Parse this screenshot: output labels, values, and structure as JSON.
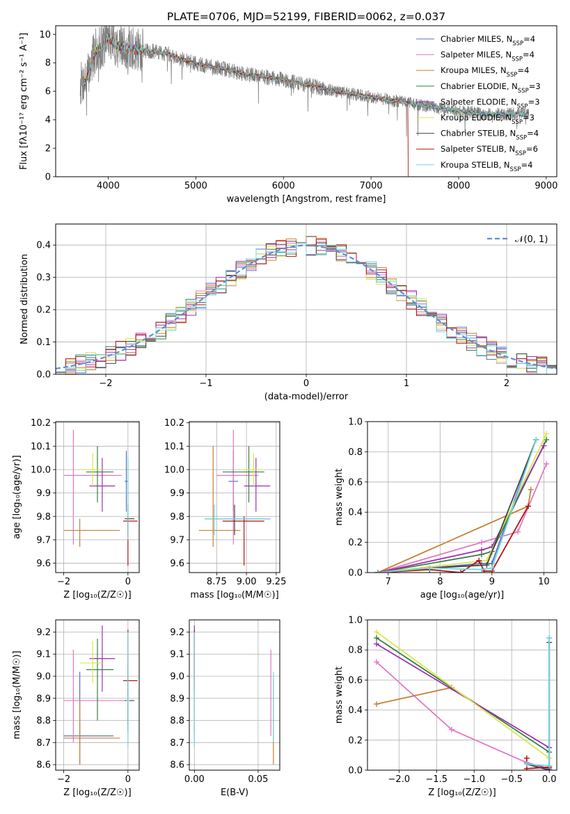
{
  "figure": {
    "title": "PLATE=0706, MJD=52199, FIBERID=0062, z=0.037"
  },
  "colors": {
    "data": "#7f7f7f",
    "models": [
      "#5470c6",
      "#e377c2",
      "#c87f32",
      "#3a7d44",
      "#9b30b0",
      "#d6e84a",
      "#444444",
      "#b01515",
      "#74d5df"
    ],
    "gaussian": "#5b8fd6",
    "grid": "#b0b0b0"
  },
  "chart_data": [
    {
      "id": "spectrum",
      "type": "line",
      "title": "PLATE=0706, MJD=52199, FIBERID=0062, z=0.037",
      "xlabel": "wavelength [Angstrom, rest frame]",
      "ylabel": "Flux [fλ10⁻¹⁷ erg cm⁻² s⁻¹ A⁻¹]",
      "xlim": [
        3400,
        9120
      ],
      "ylim": [
        0,
        10.6
      ],
      "xticks": [
        4000,
        5000,
        6000,
        7000,
        8000,
        9000
      ],
      "yticks": [
        0,
        2,
        4,
        6,
        8,
        10
      ],
      "grid": false,
      "legend_position": "top-right",
      "continuum": {
        "x": [
          3680,
          3750,
          3850,
          3950,
          4000,
          4100,
          4200,
          4300,
          4500,
          4700,
          4900,
          5100,
          5300,
          5500,
          5700,
          6000,
          6300,
          6600,
          6900,
          7200,
          7400
        ],
        "y": [
          6.5,
          6.8,
          8.8,
          9.3,
          9.8,
          9.2,
          9.0,
          8.9,
          8.8,
          8.6,
          8.1,
          7.8,
          7.6,
          7.3,
          7.1,
          6.8,
          6.4,
          6.0,
          5.7,
          5.4,
          5.2
        ]
      },
      "data_tail": {
        "x": [
          7400,
          7700,
          8000,
          8300,
          8600,
          8800
        ],
        "y": [
          5.2,
          4.9,
          4.6,
          4.4,
          4.4,
          4.4
        ]
      },
      "series": [
        {
          "name": "Chabrier MILES",
          "nssp": "4"
        },
        {
          "name": "Salpeter MILES",
          "nssp": "4"
        },
        {
          "name": "Kroupa MILES",
          "nssp": "4"
        },
        {
          "name": "Chabrier ELODIE",
          "nssp": "3"
        },
        {
          "name": "Salpeter ELODIE",
          "nssp": "3"
        },
        {
          "name": "Kroupa ELODIE",
          "nssp": "3"
        },
        {
          "name": "Chabrier STELIB",
          "nssp": "4"
        },
        {
          "name": "Salpeter STELIB",
          "nssp": "6"
        },
        {
          "name": "Kroupa STELIB",
          "nssp": "4"
        }
      ]
    },
    {
      "id": "residuals",
      "type": "histogram",
      "xlabel": "(data-model)/error",
      "ylabel": "Normed distribution",
      "xlim": [
        -2.5,
        2.5
      ],
      "ylim": [
        0,
        0.465
      ],
      "xticks": [
        -2,
        -1,
        0,
        1,
        2
      ],
      "yticks": [
        0.0,
        0.1,
        0.2,
        0.3,
        0.4
      ],
      "grid": true,
      "bin_width": 0.1,
      "gaussian_label": "𝒩(0, 1)",
      "legend_position": "top-right"
    },
    {
      "id": "z-vs-age",
      "type": "errorbar",
      "xlabel": "Z [log₁₀(Z/Z☉)]",
      "ylabel": "age  [log₁₀(age/yr)]",
      "xlim": [
        -2.25,
        0.35
      ],
      "ylim": [
        9.56,
        10.205
      ],
      "xticks": [
        -2,
        0
      ],
      "yticks": [
        9.6,
        9.7,
        9.8,
        9.9,
        10.0,
        10.1,
        10.2
      ],
      "grid": true,
      "points": [
        {
          "series": 0,
          "x": -0.05,
          "y": 9.95,
          "xlo": -0.1,
          "xhi": 0.0,
          "ylo": 9.82,
          "yhi": 10.08
        },
        {
          "series": 1,
          "x": -1.7,
          "y": 9.975,
          "xlo": -2.0,
          "xhi": -0.2,
          "ylo": 9.68,
          "yhi": 10.17
        },
        {
          "series": 2,
          "x": -1.5,
          "y": 9.74,
          "xlo": -2.0,
          "xhi": -0.25,
          "ylo": 9.67,
          "yhi": 9.79
        },
        {
          "series": 3,
          "x": -0.95,
          "y": 9.99,
          "xlo": -1.3,
          "xhi": -0.45,
          "ylo": 9.86,
          "yhi": 10.1
        },
        {
          "series": 4,
          "x": -0.8,
          "y": 9.93,
          "xlo": -1.2,
          "xhi": -0.4,
          "ylo": 9.82,
          "yhi": 10.05
        },
        {
          "series": 5,
          "x": -1.1,
          "y": 10.0,
          "xlo": -1.5,
          "xhi": -0.8,
          "ylo": 9.93,
          "yhi": 10.07
        },
        {
          "series": 6,
          "x": 0.0,
          "y": 9.79,
          "xlo": -0.1,
          "xhi": 0.2,
          "ylo": 9.72,
          "yhi": 9.85
        },
        {
          "series": 7,
          "x": 0.0,
          "y": 9.78,
          "xlo": -0.15,
          "xhi": 0.3,
          "ylo": 9.59,
          "yhi": 9.8
        },
        {
          "series": 8,
          "x": 0.0,
          "y": 9.9,
          "xlo": -0.05,
          "xhi": 0.05,
          "ylo": 9.7,
          "yhi": 10.05
        }
      ]
    },
    {
      "id": "mass-vs-age",
      "type": "errorbar",
      "xlabel": "mass [log₁₀(M/M☉)]",
      "ylabel": "",
      "xlim": [
        8.52,
        9.28
      ],
      "ylim": [
        9.56,
        10.205
      ],
      "xticks": [
        8.75,
        9.0,
        9.25
      ],
      "xticklabels": [
        "8.75",
        "9.00",
        "9.25"
      ],
      "yticks": [
        9.6,
        9.7,
        9.8,
        9.9,
        10.0,
        10.1,
        10.2
      ],
      "grid": true,
      "points": [
        {
          "series": 0,
          "x": 8.89,
          "y": 9.95,
          "xlo": 8.85,
          "xhi": 8.93,
          "ylo": 9.82,
          "yhi": 10.08
        },
        {
          "series": 1,
          "x": 8.89,
          "y": 9.975,
          "xlo": 8.75,
          "xhi": 9.1,
          "ylo": 9.68,
          "yhi": 10.17
        },
        {
          "series": 2,
          "x": 8.72,
          "y": 9.74,
          "xlo": 8.6,
          "xhi": 8.95,
          "ylo": 9.67,
          "yhi": 10.1
        },
        {
          "series": 3,
          "x": 9.02,
          "y": 9.99,
          "xlo": 8.8,
          "xhi": 9.15,
          "ylo": 9.86,
          "yhi": 10.1
        },
        {
          "series": 4,
          "x": 9.08,
          "y": 9.93,
          "xlo": 8.98,
          "xhi": 9.2,
          "ylo": 9.82,
          "yhi": 10.05
        },
        {
          "series": 5,
          "x": 9.06,
          "y": 10.0,
          "xlo": 8.95,
          "xhi": 9.15,
          "ylo": 9.93,
          "yhi": 10.07
        },
        {
          "series": 6,
          "x": 8.9,
          "y": 9.79,
          "xlo": 8.65,
          "xhi": 9.2,
          "ylo": 9.72,
          "yhi": 9.85
        },
        {
          "series": 7,
          "x": 8.98,
          "y": 9.78,
          "xlo": 8.8,
          "xhi": 9.15,
          "ylo": 9.59,
          "yhi": 9.8
        },
        {
          "series": 8,
          "x": 8.73,
          "y": 9.79,
          "xlo": 8.65,
          "xhi": 9.2,
          "ylo": 9.72,
          "yhi": 9.85
        }
      ]
    },
    {
      "id": "age-weights",
      "type": "line",
      "xlabel": "age  [log₁₀(age/yr)]",
      "ylabel": "mass weight",
      "xlim": [
        6.6,
        10.25
      ],
      "ylim": [
        0,
        1.0
      ],
      "xticks": [
        7,
        8,
        9,
        10
      ],
      "yticks": [
        0.0,
        0.2,
        0.4,
        0.6,
        0.8,
        1.0
      ],
      "grid": true,
      "series": [
        {
          "x": [
            6.8,
            8.8,
            9.0,
            9.85
          ],
          "y": [
            0.0,
            0.06,
            0.06,
            0.88
          ]
        },
        {
          "x": [
            6.8,
            8.8,
            9.5,
            10.05
          ],
          "y": [
            0.0,
            0.2,
            0.27,
            0.72
          ]
        },
        {
          "x": [
            6.8,
            9.7,
            9.75
          ],
          "y": [
            0.0,
            0.44,
            0.55
          ]
        },
        {
          "x": [
            6.8,
            8.8,
            9.0,
            10.05
          ],
          "y": [
            0.0,
            0.12,
            0.14,
            0.88
          ]
        },
        {
          "x": [
            6.8,
            8.8,
            9.0,
            10.0
          ],
          "y": [
            0.0,
            0.15,
            0.17,
            0.84
          ]
        },
        {
          "x": [
            6.8,
            8.9,
            10.05
          ],
          "y": [
            0.0,
            0.08,
            0.92
          ]
        },
        {
          "x": [
            6.8,
            7.8,
            8.9,
            9.85
          ],
          "y": [
            0.0,
            0.03,
            0.05,
            0.88
          ]
        },
        {
          "x": [
            6.8,
            7.8,
            8.4,
            8.75,
            8.85,
            9.0,
            9.7
          ],
          "y": [
            0.0,
            0.02,
            0.0,
            0.08,
            0.01,
            0.01,
            0.44
          ]
        },
        {
          "x": [
            6.8,
            7.8,
            8.8,
            9.0,
            9.85
          ],
          "y": [
            0.0,
            0.03,
            0.02,
            0.03,
            0.88
          ]
        }
      ]
    },
    {
      "id": "z-vs-mass",
      "type": "errorbar",
      "xlabel": "Z [log₁₀(Z/Z☉)]",
      "ylabel": "mass [log₁₀(M/M☉)]",
      "xlim": [
        -2.25,
        0.35
      ],
      "ylim": [
        8.575,
        9.255
      ],
      "xticks": [
        -2,
        0
      ],
      "yticks": [
        8.6,
        8.7,
        8.8,
        8.9,
        9.0,
        9.1,
        9.2
      ],
      "grid": true,
      "points": [
        {
          "series": 0,
          "x": -1.5,
          "y": 8.73,
          "xlo": -2.0,
          "xhi": -0.45,
          "ylo": 8.6,
          "yhi": 9.02
        },
        {
          "series": 1,
          "x": -1.7,
          "y": 8.89,
          "xlo": -2.0,
          "xhi": -0.1,
          "ylo": 8.7,
          "yhi": 9.12
        },
        {
          "series": 2,
          "x": -1.5,
          "y": 8.72,
          "xlo": -2.0,
          "xhi": -0.25,
          "ylo": 8.6,
          "yhi": 8.89
        },
        {
          "series": 3,
          "x": -0.95,
          "y": 9.03,
          "xlo": -1.3,
          "xhi": -0.45,
          "ylo": 8.8,
          "yhi": 9.17
        },
        {
          "series": 4,
          "x": -0.8,
          "y": 9.08,
          "xlo": -1.2,
          "xhi": -0.4,
          "ylo": 8.93,
          "yhi": 9.23
        },
        {
          "series": 5,
          "x": -1.1,
          "y": 9.06,
          "xlo": -1.5,
          "xhi": -0.8,
          "ylo": 8.97,
          "yhi": 9.16
        },
        {
          "series": 6,
          "x": 0.0,
          "y": 8.89,
          "xlo": -0.1,
          "xhi": 0.2,
          "ylo": 8.75,
          "yhi": 9.05
        },
        {
          "series": 7,
          "x": 0.0,
          "y": 8.98,
          "xlo": -0.15,
          "xhi": 0.3,
          "ylo": 8.78,
          "yhi": 9.21
        },
        {
          "series": 8,
          "x": 0.0,
          "y": 8.89,
          "xlo": -0.05,
          "xhi": 0.05,
          "ylo": 8.68,
          "yhi": 9.2
        }
      ]
    },
    {
      "id": "ebv-vs-mass",
      "type": "errorbar",
      "xlabel": "E(B-V)",
      "ylabel": "",
      "xlim": [
        -0.004,
        0.067
      ],
      "ylim": [
        8.575,
        9.255
      ],
      "xticks": [
        0.0,
        0.05
      ],
      "xticklabels": [
        "0.00",
        "0.05"
      ],
      "yticks": [
        8.6,
        8.7,
        8.8,
        8.9,
        9.0,
        9.1,
        9.2
      ],
      "grid": true,
      "points": [
        {
          "series": 0,
          "x": 0.0,
          "y": 8.89,
          "ylo": 8.75,
          "yhi": 9.05
        },
        {
          "series": 1,
          "x": 0.0,
          "y": 8.89,
          "ylo": 8.7,
          "yhi": 9.12
        },
        {
          "series": 4,
          "x": 0.0,
          "y": 9.08,
          "ylo": 8.93,
          "yhi": 9.23
        },
        {
          "series": 7,
          "x": 0.0,
          "y": 9.1,
          "ylo": 8.98,
          "yhi": 9.21
        },
        {
          "series": 8,
          "x": 0.0,
          "y": 8.89,
          "ylo": 8.68,
          "yhi": 9.2
        },
        {
          "series": 1,
          "x": 0.06,
          "y": 8.95,
          "ylo": 8.73,
          "yhi": 9.12
        },
        {
          "series": 2,
          "x": 0.062,
          "y": 8.8,
          "ylo": 8.6,
          "yhi": 8.99
        },
        {
          "series": 8,
          "x": 0.062,
          "y": 8.85,
          "ylo": 8.7,
          "yhi": 9.02
        }
      ]
    },
    {
      "id": "z-weights",
      "type": "line",
      "xlabel": "Z [log₁₀(Z/Z☉)]",
      "ylabel": "mass weight",
      "xlim": [
        -2.42,
        0.1
      ],
      "ylim": [
        0,
        1.0
      ],
      "xticks": [
        -2.0,
        -1.5,
        -1.0,
        -0.5,
        0.0
      ],
      "xticklabels": [
        "−2.0",
        "−1.5",
        "−1.0",
        "−0.5",
        "0.0"
      ],
      "yticks": [
        0.0,
        0.2,
        0.4,
        0.6,
        0.8,
        1.0
      ],
      "grid": true,
      "series": [
        {
          "x": [
            -0.3,
            0.0,
            0.0
          ],
          "y": [
            0.05,
            0.01,
            0.88
          ]
        },
        {
          "x": [
            -2.3,
            -1.3,
            -0.3,
            0.0
          ],
          "y": [
            0.72,
            0.27,
            0.05,
            0.0
          ]
        },
        {
          "x": [
            -2.3,
            -1.3
          ],
          "y": [
            0.44,
            0.55
          ]
        },
        {
          "x": [
            -2.3,
            0.0
          ],
          "y": [
            0.88,
            0.12
          ]
        },
        {
          "x": [
            -2.3,
            0.0
          ],
          "y": [
            0.84,
            0.15
          ]
        },
        {
          "x": [
            -2.3,
            0.0
          ],
          "y": [
            0.92,
            0.08
          ]
        },
        {
          "x": [
            -0.3,
            0.0,
            0.0
          ],
          "y": [
            0.04,
            0.0,
            0.85
          ]
        },
        {
          "x": [
            -0.3,
            -0.3,
            0.0
          ],
          "y": [
            0.08,
            0.01,
            0.02
          ]
        },
        {
          "x": [
            -0.3,
            0.0,
            0.0
          ],
          "y": [
            0.04,
            0.03,
            0.88
          ]
        }
      ]
    }
  ]
}
